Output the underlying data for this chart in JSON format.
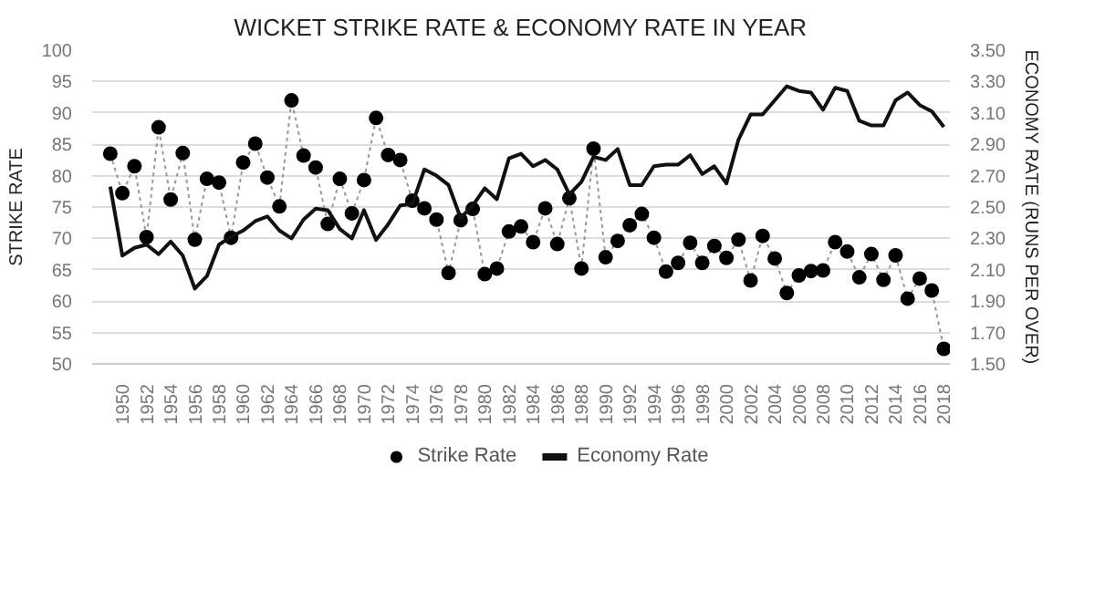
{
  "chart_data": {
    "type": "line",
    "title": "WICKET STRIKE RATE & ECONOMY RATE IN YEAR",
    "ylabel": "STRIKE RATE",
    "y2label": "ECONOMY RATE (RUNS PER OVER)",
    "categories": [
      null,
      "1950",
      null,
      "1952",
      null,
      "1954",
      null,
      "1956",
      null,
      "1958",
      null,
      "1960",
      null,
      "1962",
      null,
      "1964",
      null,
      "1966",
      null,
      "1968",
      null,
      "1970",
      null,
      "1972",
      null,
      "1974",
      null,
      "1976",
      null,
      "1978",
      null,
      "1980",
      null,
      "1982",
      null,
      "1984",
      null,
      "1986",
      null,
      "1988",
      null,
      "1990",
      null,
      "1992",
      null,
      "1994",
      null,
      "1996",
      null,
      "1998",
      null,
      "2000",
      null,
      "2002",
      null,
      "2004",
      null,
      "2006",
      null,
      "2008",
      null,
      "2010",
      null,
      "2012",
      null,
      "2014",
      null,
      "2016",
      null,
      "2018"
    ],
    "series": [
      {
        "name": "Strike Rate",
        "color": "#000000",
        "marker": "circle",
        "line_style": "dotted",
        "values": [
          83.5,
          77.2,
          81.5,
          70.2,
          87.7,
          76.2,
          83.6,
          69.8,
          79.5,
          78.9,
          70.1,
          82.1,
          85.1,
          79.7,
          75.1,
          92.0,
          83.2,
          81.3,
          72.3,
          79.5,
          74.0,
          79.3,
          89.2,
          83.3,
          82.5,
          76.0,
          74.8,
          73.0,
          64.5,
          72.9,
          74.7,
          64.3,
          65.2,
          71.1,
          71.9,
          69.4,
          74.8,
          69.1,
          76.4,
          65.2,
          84.3,
          67.0,
          69.6,
          72.1,
          73.9,
          70.1,
          64.7,
          66.1,
          69.3,
          66.1,
          68.8,
          66.9,
          69.8,
          63.3,
          70.4,
          66.8,
          61.3,
          64.1,
          64.8,
          64.9,
          69.4,
          67.9,
          63.8,
          67.5,
          63.4,
          67.3,
          60.4,
          63.6,
          61.7,
          52.4
        ]
      },
      {
        "name": "Economy Rate",
        "color": "#111111",
        "axis": "y2",
        "marker": "none",
        "line_style": "solid",
        "values": [
          2.63,
          2.19,
          2.24,
          2.26,
          2.2,
          2.28,
          2.19,
          1.98,
          2.06,
          2.26,
          2.31,
          2.35,
          2.41,
          2.44,
          2.35,
          2.3,
          2.42,
          2.49,
          2.48,
          2.36,
          2.3,
          2.48,
          2.29,
          2.39,
          2.51,
          2.52,
          2.74,
          2.7,
          2.64,
          2.43,
          2.51,
          2.62,
          2.55,
          2.81,
          2.84,
          2.76,
          2.8,
          2.74,
          2.58,
          2.66,
          2.82,
          2.8,
          2.87,
          2.64,
          2.64,
          2.76,
          2.77,
          2.77,
          2.83,
          2.71,
          2.76,
          2.65,
          2.93,
          3.09,
          3.09,
          3.18,
          3.27,
          3.24,
          3.23,
          3.12,
          3.26,
          3.24,
          3.05,
          3.02,
          3.02,
          3.18,
          3.23,
          3.15,
          3.11,
          3.01
        ]
      }
    ],
    "ylim": [
      50,
      100
    ],
    "yticks": [
      50,
      55,
      60,
      65,
      70,
      75,
      80,
      85,
      90,
      95,
      100
    ],
    "y2lim": [
      1.5,
      3.5
    ],
    "y2ticks": [
      {
        "value": 1.5,
        "label": "1.50"
      },
      {
        "value": 1.7,
        "label": "1.70"
      },
      {
        "value": 1.9,
        "label": "1.90"
      },
      {
        "value": 2.1,
        "label": "2.10"
      },
      {
        "value": 2.3,
        "label": "2.30"
      },
      {
        "value": 2.5,
        "label": "2.50"
      },
      {
        "value": 2.7,
        "label": "2.70"
      },
      {
        "value": 2.9,
        "label": "2.90"
      },
      {
        "value": 3.1,
        "label": "3.10"
      },
      {
        "value": 3.3,
        "label": "3.30"
      },
      {
        "value": 3.5,
        "label": "3.50"
      }
    ],
    "grid": "y",
    "legend": "bottom"
  }
}
